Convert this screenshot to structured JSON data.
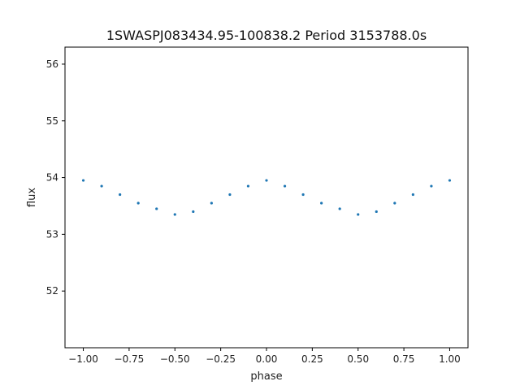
{
  "chart_data": {
    "type": "scatter",
    "title": "1SWASPJ083434.95-100838.2 Period 3153788.0s",
    "xlabel": "phase",
    "ylabel": "flux",
    "xlim": [
      -1.1,
      1.1
    ],
    "ylim": [
      51.0,
      56.3
    ],
    "x_ticks": [
      -1.0,
      -0.75,
      -0.5,
      -0.25,
      0.0,
      0.25,
      0.5,
      0.75,
      1.0
    ],
    "x_tick_labels": [
      "−1.00",
      "−0.75",
      "−0.50",
      "−0.25",
      "0.00",
      "0.25",
      "0.50",
      "0.75",
      "1.00"
    ],
    "y_ticks": [
      52,
      53,
      54,
      55,
      56
    ],
    "y_tick_labels": [
      "52",
      "53",
      "54",
      "55",
      "56"
    ],
    "marker_color": "#1f77b4",
    "grid": false,
    "legend": "none",
    "series": [
      {
        "x": [
          -1.0,
          -0.9,
          -0.8,
          -0.7,
          -0.6,
          -0.5,
          -0.4,
          -0.3,
          -0.2,
          -0.1,
          0.0,
          0.1,
          0.2,
          0.3,
          0.4,
          0.5,
          0.6,
          0.7,
          0.8,
          0.9,
          1.0
        ],
        "y": [
          53.95,
          53.85,
          53.7,
          53.55,
          53.45,
          53.35,
          53.4,
          53.55,
          53.7,
          53.85,
          53.95,
          53.85,
          53.7,
          53.55,
          53.45,
          53.35,
          53.4,
          53.55,
          53.7,
          53.85,
          53.95
        ]
      }
    ]
  }
}
